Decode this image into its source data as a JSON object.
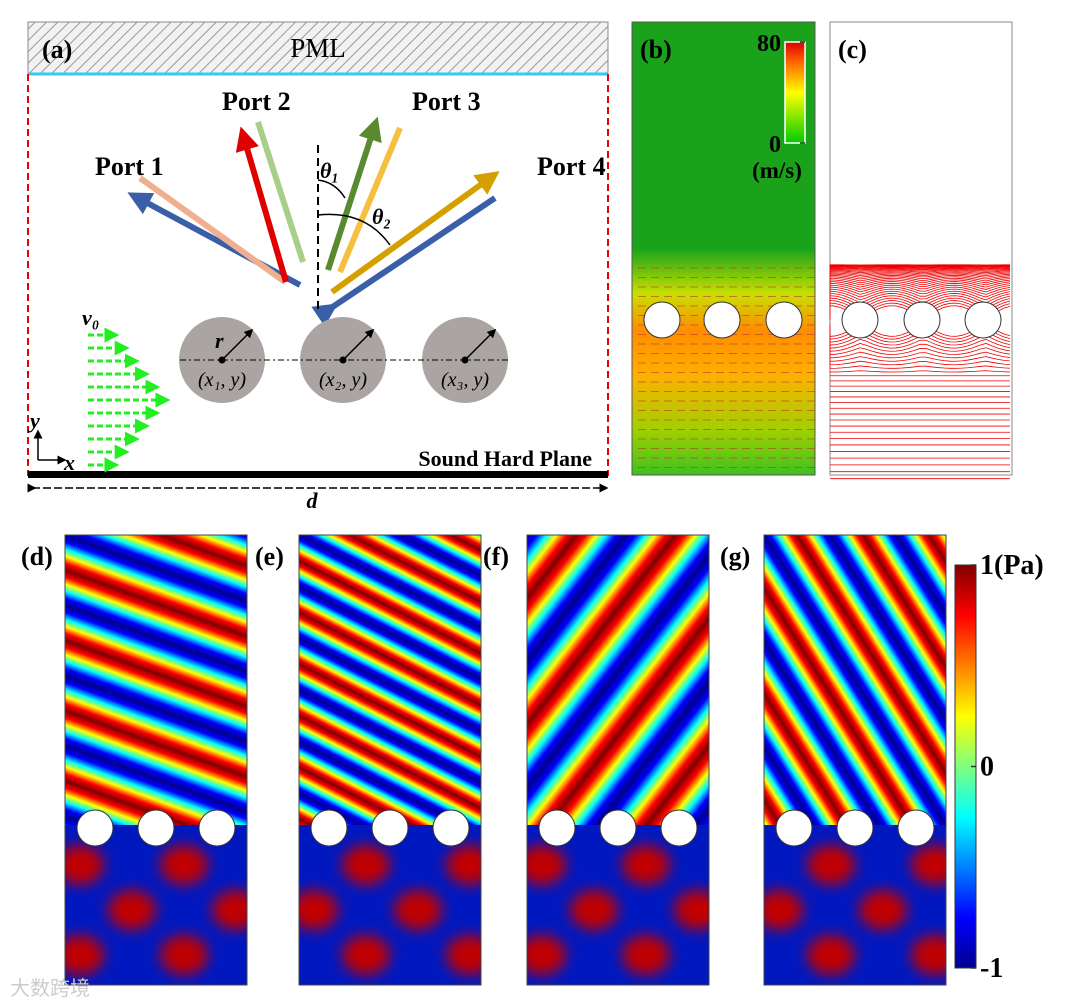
{
  "panel_a": {
    "label": "(a)",
    "pml": "PML",
    "ports": [
      "Port 1",
      "Port 2",
      "Port 3",
      "Port 4"
    ],
    "angles": [
      "θ₁",
      "θ₂"
    ],
    "velocity": "v₀",
    "radius": "r",
    "centers": [
      "(x₁, y)",
      "(x₂, y)",
      "(x₃, y)"
    ],
    "axes": [
      "y",
      "x"
    ],
    "plane": "Sound Hard Plane",
    "width": "d"
  },
  "panel_b": {
    "label": "(b)",
    "colorbar": {
      "lim": [
        0,
        80
      ],
      "ticks": [
        80,
        0
      ],
      "unit": "(m/s)"
    }
  },
  "panel_c": {
    "label": "(c)"
  },
  "pressure_panels": {
    "labels": [
      "(d)",
      "(e)",
      "(f)",
      "(g)"
    ],
    "colorbar": {
      "lim": [
        -1,
        1
      ],
      "ticks": [
        {
          "value": 1,
          "label": "1(Pa)"
        },
        0,
        {
          "value": -1,
          "label": "-1"
        }
      ]
    }
  },
  "watermark": "大数跨境"
}
